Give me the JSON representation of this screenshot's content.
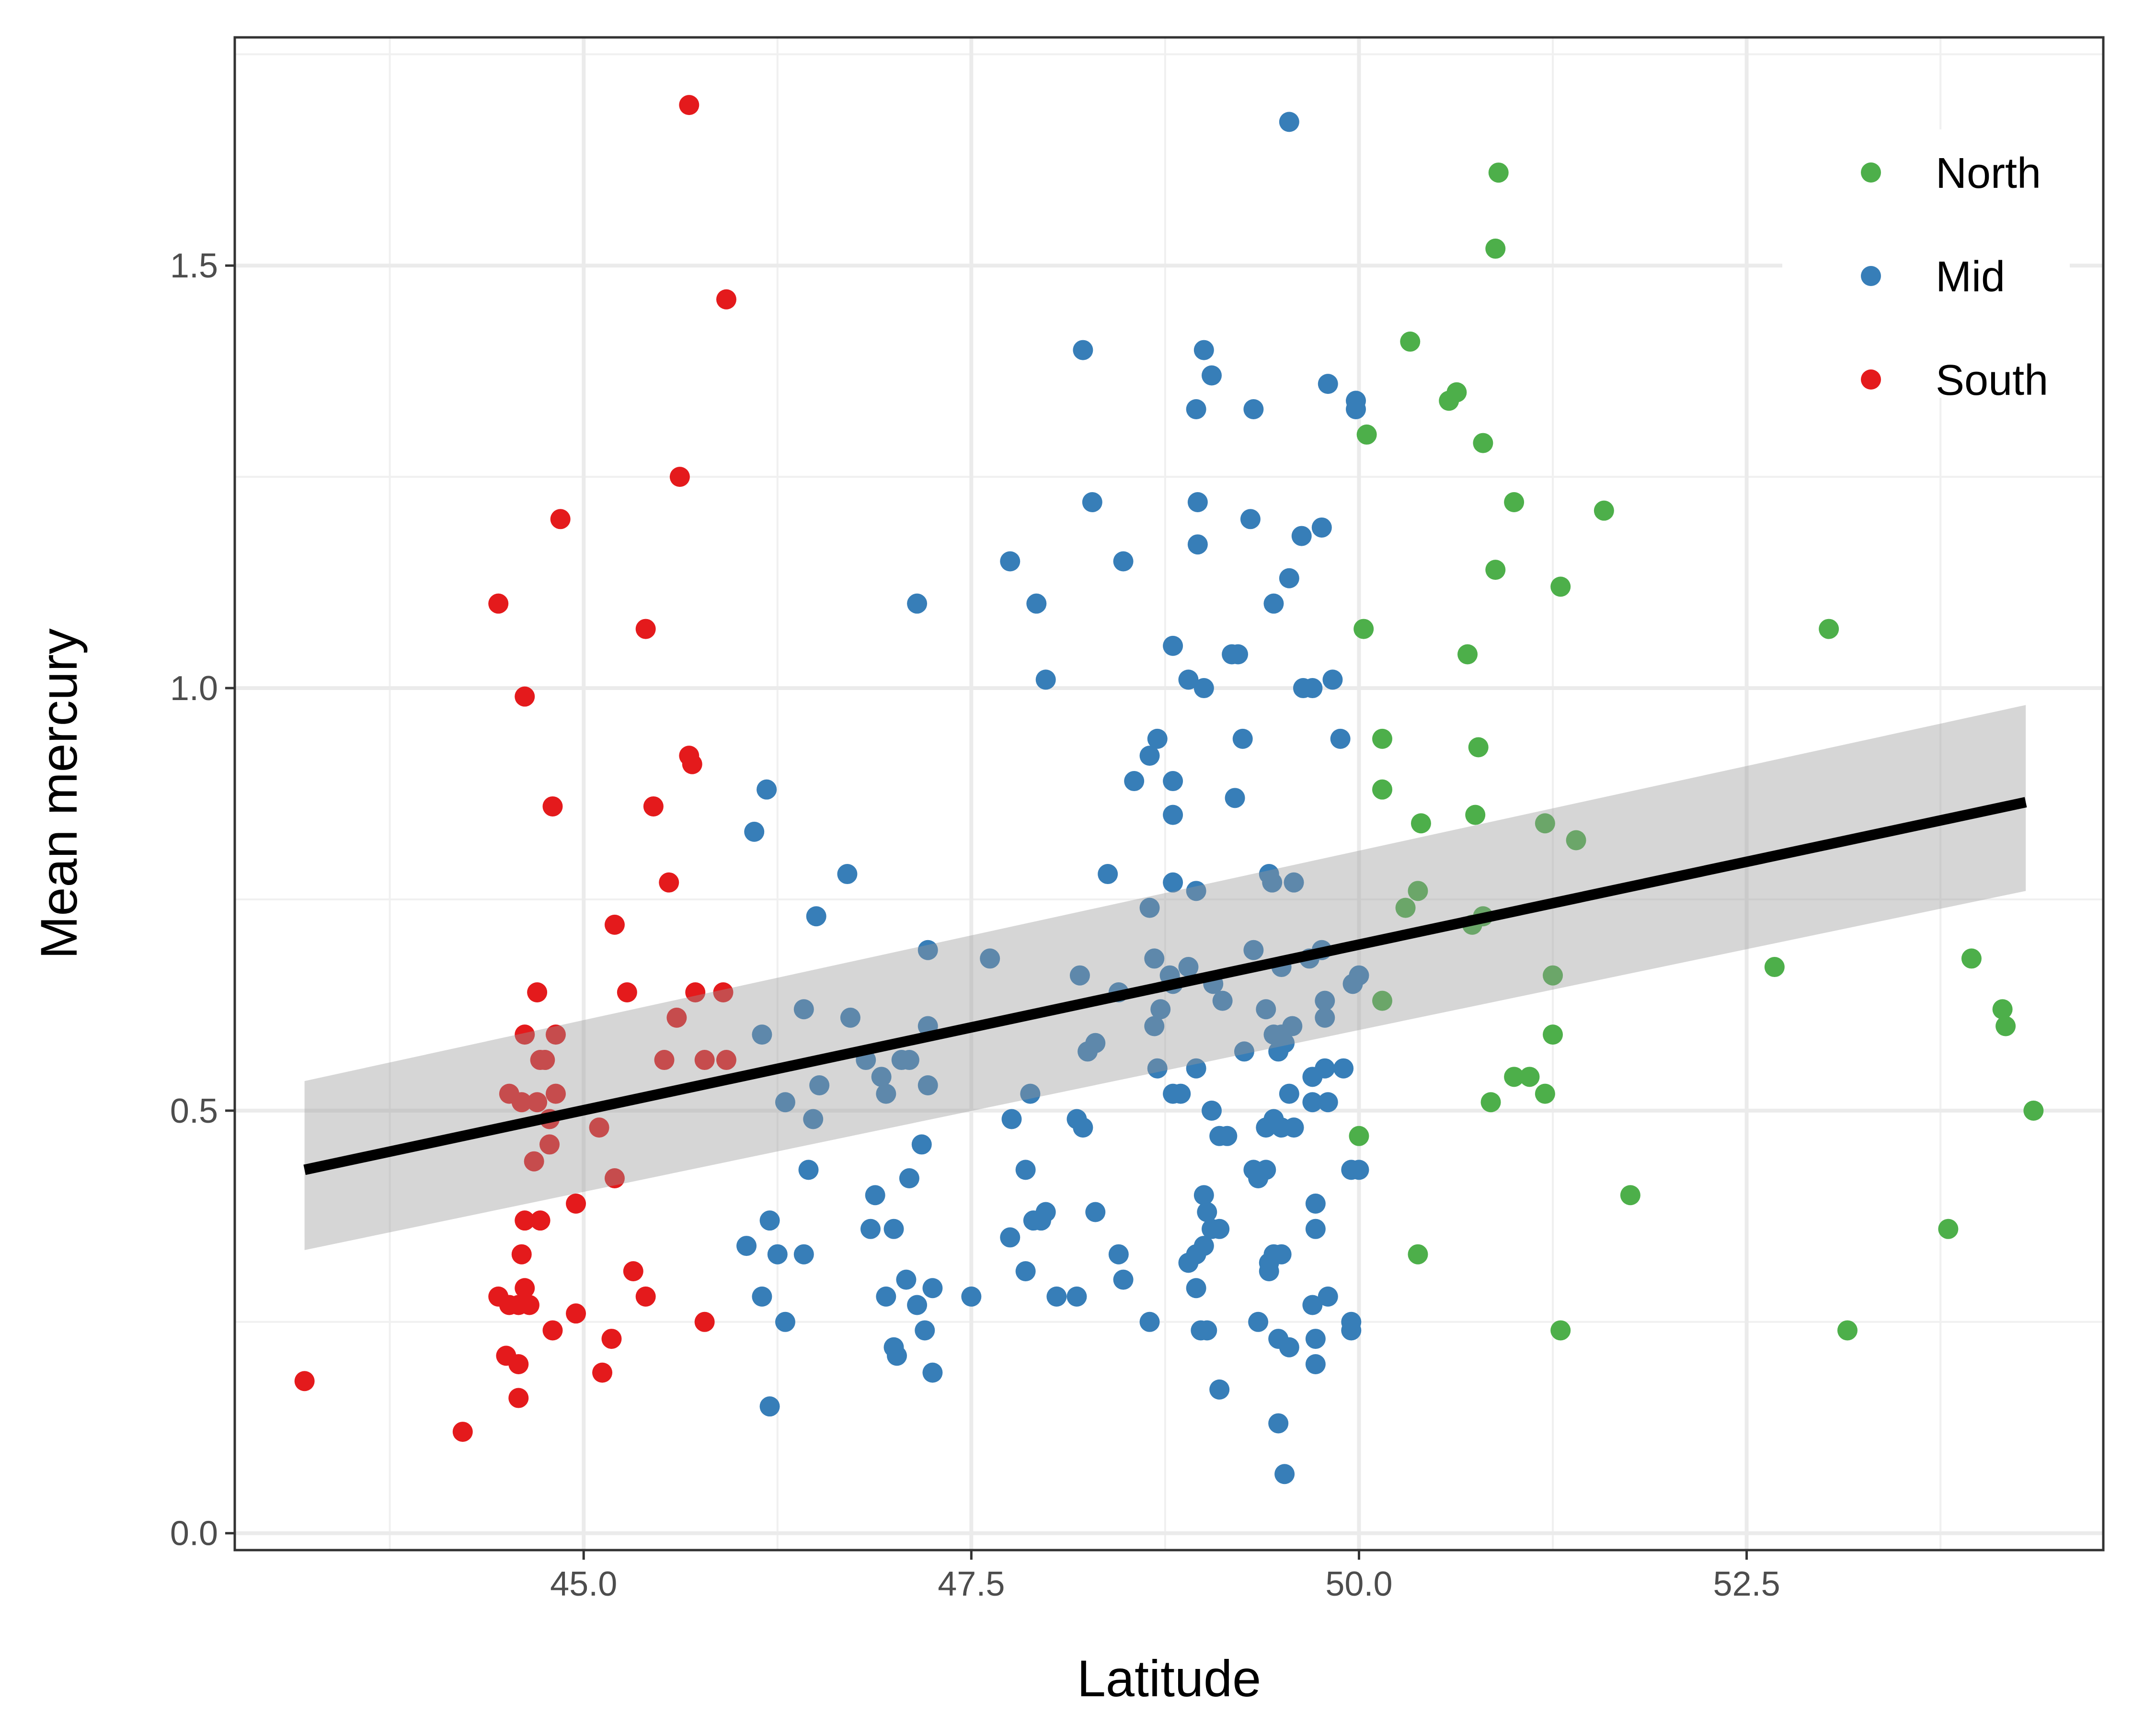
{
  "chart_data": {
    "type": "scatter",
    "xlabel": "Latitude",
    "ylabel": "Mean mercury",
    "xlim": [
      42.75,
      54.8
    ],
    "ylim": [
      -0.02,
      1.77
    ],
    "x_ticks": [
      45.0,
      47.5,
      50.0,
      52.5
    ],
    "x_tick_labels": [
      "45.0",
      "47.5",
      "50.0",
      "52.5"
    ],
    "y_ticks": [
      0.0,
      0.5,
      1.0,
      1.5
    ],
    "y_tick_labels": [
      "0.0",
      "0.5",
      "1.0",
      "1.5"
    ],
    "grid": true,
    "legend_position": "top-right",
    "series": [
      {
        "name": "North",
        "color": "#4DAF4A",
        "points": [
          [
            50.9,
            1.61
          ],
          [
            50.88,
            1.52
          ],
          [
            50.33,
            1.41
          ],
          [
            50.63,
            1.35
          ],
          [
            50.58,
            1.34
          ],
          [
            50.05,
            1.3
          ],
          [
            50.8,
            1.29
          ],
          [
            51.0,
            1.22
          ],
          [
            51.58,
            1.21
          ],
          [
            50.88,
            1.14
          ],
          [
            51.3,
            1.12
          ],
          [
            50.03,
            1.07
          ],
          [
            50.7,
            1.04
          ],
          [
            53.03,
            1.07
          ],
          [
            50.15,
            0.94
          ],
          [
            50.77,
            0.93
          ],
          [
            50.15,
            0.88
          ],
          [
            50.75,
            0.85
          ],
          [
            51.2,
            0.84
          ],
          [
            50.4,
            0.84
          ],
          [
            51.4,
            0.82
          ],
          [
            50.38,
            0.76
          ],
          [
            50.3,
            0.74
          ],
          [
            50.73,
            0.72
          ],
          [
            50.8,
            0.73
          ],
          [
            52.68,
            0.67
          ],
          [
            53.95,
            0.68
          ],
          [
            51.25,
            0.66
          ],
          [
            54.15,
            0.62
          ],
          [
            50.15,
            0.63
          ],
          [
            54.17,
            0.6
          ],
          [
            51.25,
            0.59
          ],
          [
            51.0,
            0.54
          ],
          [
            51.1,
            0.54
          ],
          [
            51.2,
            0.52
          ],
          [
            50.85,
            0.51
          ],
          [
            54.35,
            0.5
          ],
          [
            50.0,
            0.47
          ],
          [
            51.75,
            0.4
          ],
          [
            50.38,
            0.33
          ],
          [
            53.8,
            0.36
          ],
          [
            51.3,
            0.24
          ],
          [
            53.15,
            0.24
          ]
        ]
      },
      {
        "name": "Mid",
        "color": "#377EB8",
        "points": [
          [
            49.55,
            1.67
          ],
          [
            48.22,
            1.4
          ],
          [
            49.0,
            1.4
          ],
          [
            49.05,
            1.37
          ],
          [
            49.8,
            1.36
          ],
          [
            49.98,
            1.34
          ],
          [
            49.98,
            1.33
          ],
          [
            48.95,
            1.33
          ],
          [
            49.32,
            1.33
          ],
          [
            48.28,
            1.22
          ],
          [
            48.96,
            1.22
          ],
          [
            49.3,
            1.2
          ],
          [
            49.76,
            1.19
          ],
          [
            48.96,
            1.17
          ],
          [
            49.63,
            1.18
          ],
          [
            47.75,
            1.15
          ],
          [
            48.48,
            1.15
          ],
          [
            49.55,
            1.13
          ],
          [
            47.15,
            1.1
          ],
          [
            47.92,
            1.1
          ],
          [
            49.45,
            1.1
          ],
          [
            48.8,
            1.05
          ],
          [
            49.18,
            1.04
          ],
          [
            49.22,
            1.04
          ],
          [
            47.98,
            1.01
          ],
          [
            48.9,
            1.01
          ],
          [
            49.83,
            1.01
          ],
          [
            49.64,
            1.0
          ],
          [
            49.7,
            1.0
          ],
          [
            49.0,
            1.0
          ],
          [
            48.7,
            0.94
          ],
          [
            49.25,
            0.94
          ],
          [
            49.88,
            0.94
          ],
          [
            48.65,
            0.92
          ],
          [
            48.55,
            0.89
          ],
          [
            48.8,
            0.89
          ],
          [
            46.18,
            0.88
          ],
          [
            49.2,
            0.87
          ],
          [
            48.8,
            0.85
          ],
          [
            46.1,
            0.83
          ],
          [
            46.7,
            0.78
          ],
          [
            48.38,
            0.78
          ],
          [
            48.8,
            0.77
          ],
          [
            49.42,
            0.78
          ],
          [
            49.44,
            0.77
          ],
          [
            49.58,
            0.77
          ],
          [
            48.95,
            0.76
          ],
          [
            48.65,
            0.74
          ],
          [
            46.5,
            0.73
          ],
          [
            47.22,
            0.69
          ],
          [
            47.62,
            0.68
          ],
          [
            49.32,
            0.69
          ],
          [
            48.68,
            0.68
          ],
          [
            48.9,
            0.67
          ],
          [
            49.76,
            0.69
          ],
          [
            49.5,
            0.67
          ],
          [
            48.2,
            0.66
          ],
          [
            48.78,
            0.66
          ],
          [
            49.06,
            0.65
          ],
          [
            48.8,
            0.65
          ],
          [
            49.68,
            0.68
          ],
          [
            50.0,
            0.66
          ],
          [
            48.45,
            0.64
          ],
          [
            49.12,
            0.63
          ],
          [
            49.4,
            0.62
          ],
          [
            49.78,
            0.63
          ],
          [
            49.96,
            0.65
          ],
          [
            46.72,
            0.61
          ],
          [
            48.72,
            0.62
          ],
          [
            48.68,
            0.6
          ],
          [
            49.78,
            0.61
          ],
          [
            46.42,
            0.62
          ],
          [
            47.22,
            0.6
          ],
          [
            46.15,
            0.59
          ],
          [
            49.57,
            0.6
          ],
          [
            49.45,
            0.59
          ],
          [
            49.5,
            0.59
          ],
          [
            48.3,
            0.58
          ],
          [
            48.25,
            0.57
          ],
          [
            49.26,
            0.57
          ],
          [
            49.48,
            0.57
          ],
          [
            49.52,
            0.58
          ],
          [
            46.82,
            0.56
          ],
          [
            47.05,
            0.56
          ],
          [
            47.1,
            0.56
          ],
          [
            48.7,
            0.55
          ],
          [
            48.95,
            0.55
          ],
          [
            49.7,
            0.54
          ],
          [
            49.78,
            0.55
          ],
          [
            49.9,
            0.55
          ],
          [
            46.92,
            0.54
          ],
          [
            47.22,
            0.53
          ],
          [
            46.52,
            0.53
          ],
          [
            46.3,
            0.51
          ],
          [
            46.95,
            0.52
          ],
          [
            47.88,
            0.52
          ],
          [
            48.85,
            0.52
          ],
          [
            48.8,
            0.52
          ],
          [
            49.55,
            0.52
          ],
          [
            49.7,
            0.51
          ],
          [
            49.8,
            0.51
          ],
          [
            49.05,
            0.5
          ],
          [
            48.18,
            0.49
          ],
          [
            47.76,
            0.49
          ],
          [
            46.48,
            0.49
          ],
          [
            49.45,
            0.49
          ],
          [
            49.5,
            0.48
          ],
          [
            49.4,
            0.48
          ],
          [
            49.58,
            0.48
          ],
          [
            48.22,
            0.48
          ],
          [
            49.1,
            0.47
          ],
          [
            49.15,
            0.47
          ],
          [
            47.18,
            0.46
          ],
          [
            46.45,
            0.43
          ],
          [
            47.1,
            0.42
          ],
          [
            47.85,
            0.43
          ],
          [
            49.35,
            0.42
          ],
          [
            49.32,
            0.43
          ],
          [
            49.4,
            0.43
          ],
          [
            49.95,
            0.43
          ],
          [
            50.0,
            0.43
          ],
          [
            46.88,
            0.4
          ],
          [
            49.0,
            0.4
          ],
          [
            49.72,
            0.39
          ],
          [
            46.2,
            0.37
          ],
          [
            47.9,
            0.37
          ],
          [
            47.95,
            0.37
          ],
          [
            48.3,
            0.38
          ],
          [
            47.98,
            0.38
          ],
          [
            49.02,
            0.38
          ],
          [
            49.05,
            0.36
          ],
          [
            49.1,
            0.36
          ],
          [
            46.85,
            0.36
          ],
          [
            47.0,
            0.36
          ],
          [
            47.75,
            0.35
          ],
          [
            49.72,
            0.36
          ],
          [
            46.05,
            0.34
          ],
          [
            46.25,
            0.33
          ],
          [
            46.42,
            0.33
          ],
          [
            48.45,
            0.33
          ],
          [
            48.95,
            0.33
          ],
          [
            49.45,
            0.33
          ],
          [
            49.5,
            0.33
          ],
          [
            49.42,
            0.32
          ],
          [
            48.9,
            0.32
          ],
          [
            49.0,
            0.34
          ],
          [
            47.08,
            0.3
          ],
          [
            47.25,
            0.29
          ],
          [
            47.85,
            0.31
          ],
          [
            48.48,
            0.3
          ],
          [
            49.42,
            0.31
          ],
          [
            46.15,
            0.28
          ],
          [
            46.95,
            0.28
          ],
          [
            47.5,
            0.28
          ],
          [
            48.05,
            0.28
          ],
          [
            48.18,
            0.28
          ],
          [
            47.15,
            0.27
          ],
          [
            49.7,
            0.27
          ],
          [
            49.8,
            0.28
          ],
          [
            48.95,
            0.29
          ],
          [
            46.3,
            0.25
          ],
          [
            47.2,
            0.24
          ],
          [
            49.35,
            0.25
          ],
          [
            49.95,
            0.24
          ],
          [
            48.65,
            0.25
          ],
          [
            48.98,
            0.24
          ],
          [
            49.02,
            0.24
          ],
          [
            49.95,
            0.25
          ],
          [
            47.0,
            0.22
          ],
          [
            49.48,
            0.23
          ],
          [
            49.55,
            0.22
          ],
          [
            49.72,
            0.23
          ],
          [
            47.02,
            0.21
          ],
          [
            47.25,
            0.19
          ],
          [
            49.72,
            0.2
          ],
          [
            49.1,
            0.17
          ],
          [
            46.2,
            0.15
          ],
          [
            49.48,
            0.13
          ],
          [
            49.52,
            0.07
          ]
        ]
      },
      {
        "name": "South",
        "color": "#E41A1C",
        "points": [
          [
            45.68,
            1.69
          ],
          [
            45.92,
            1.46
          ],
          [
            45.62,
            1.25
          ],
          [
            44.85,
            1.2
          ],
          [
            44.45,
            1.1
          ],
          [
            45.4,
            1.07
          ],
          [
            44.62,
            0.99
          ],
          [
            45.68,
            0.92
          ],
          [
            45.7,
            0.91
          ],
          [
            44.8,
            0.86
          ],
          [
            45.45,
            0.86
          ],
          [
            45.55,
            0.77
          ],
          [
            45.2,
            0.72
          ],
          [
            44.7,
            0.64
          ],
          [
            45.28,
            0.64
          ],
          [
            45.72,
            0.64
          ],
          [
            45.9,
            0.64
          ],
          [
            45.6,
            0.61
          ],
          [
            44.62,
            0.59
          ],
          [
            44.82,
            0.59
          ],
          [
            45.52,
            0.56
          ],
          [
            45.78,
            0.56
          ],
          [
            45.92,
            0.56
          ],
          [
            44.72,
            0.56
          ],
          [
            44.75,
            0.56
          ],
          [
            44.52,
            0.52
          ],
          [
            44.82,
            0.52
          ],
          [
            44.6,
            0.51
          ],
          [
            44.7,
            0.51
          ],
          [
            44.78,
            0.49
          ],
          [
            45.1,
            0.48
          ],
          [
            44.78,
            0.46
          ],
          [
            44.68,
            0.44
          ],
          [
            45.2,
            0.42
          ],
          [
            44.95,
            0.39
          ],
          [
            44.62,
            0.37
          ],
          [
            44.72,
            0.37
          ],
          [
            44.6,
            0.33
          ],
          [
            45.32,
            0.31
          ],
          [
            44.62,
            0.29
          ],
          [
            44.65,
            0.27
          ],
          [
            44.45,
            0.28
          ],
          [
            44.52,
            0.27
          ],
          [
            44.58,
            0.27
          ],
          [
            45.4,
            0.28
          ],
          [
            44.95,
            0.26
          ],
          [
            45.78,
            0.25
          ],
          [
            44.8,
            0.24
          ],
          [
            45.18,
            0.23
          ],
          [
            44.5,
            0.21
          ],
          [
            44.58,
            0.2
          ],
          [
            45.12,
            0.19
          ],
          [
            44.58,
            0.16
          ],
          [
            44.22,
            0.12
          ],
          [
            43.2,
            0.18
          ]
        ]
      }
    ],
    "fit": {
      "type": "linear",
      "x_range": [
        43.2,
        54.3
      ],
      "y_start": 0.43,
      "y_end": 0.865,
      "ci_lower": [
        0.335,
        0.76
      ],
      "ci_upper": [
        0.535,
        0.98
      ]
    }
  }
}
